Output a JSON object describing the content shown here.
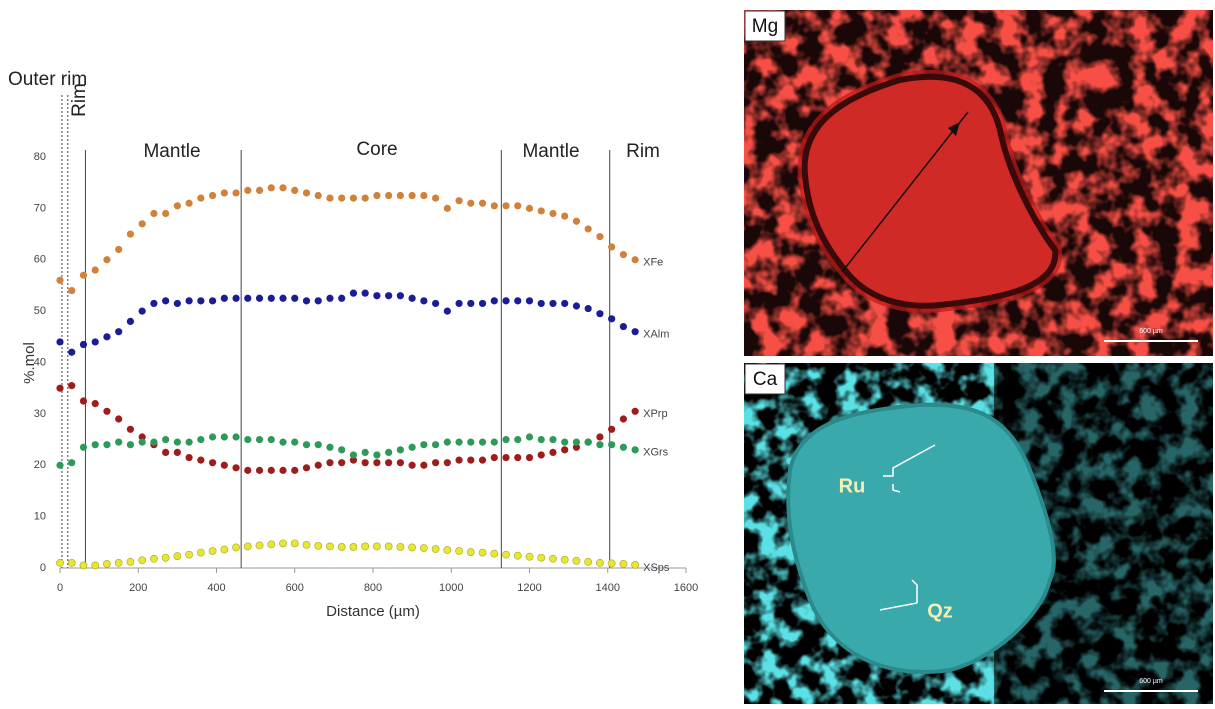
{
  "chart_data": {
    "type": "scatter",
    "x_label": "Distance (µm)",
    "y_label": "%.mol",
    "xlim": [
      0,
      1600
    ],
    "xticks": [
      0,
      200,
      400,
      600,
      800,
      1000,
      1200,
      1400,
      1600
    ],
    "ylim": [
      0,
      80
    ],
    "yticks": [
      0,
      10,
      20,
      30,
      40,
      50,
      60,
      70,
      80
    ],
    "x": [
      0,
      30,
      60,
      90,
      120,
      150,
      180,
      210,
      240,
      270,
      300,
      330,
      360,
      390,
      420,
      450,
      480,
      510,
      540,
      570,
      600,
      630,
      660,
      690,
      720,
      750,
      780,
      810,
      840,
      870,
      900,
      930,
      960,
      990,
      1020,
      1050,
      1080,
      1110,
      1140,
      1170,
      1200,
      1230,
      1260,
      1290,
      1320,
      1350,
      1380,
      1410,
      1440,
      1470
    ],
    "series": [
      {
        "name": "XFe",
        "color": "#d2813b",
        "values": [
          56,
          54,
          57,
          58,
          60,
          62,
          65,
          67,
          69,
          69,
          70.5,
          71,
          72,
          72.5,
          73,
          73,
          73.5,
          73.5,
          74,
          74,
          73.5,
          73,
          72.5,
          72,
          72,
          72,
          72,
          72.5,
          72.5,
          72.5,
          72.5,
          72.5,
          72,
          70,
          71.5,
          71,
          71,
          70.5,
          70.5,
          70.5,
          70,
          69.5,
          69,
          68.5,
          67.5,
          66,
          64.5,
          62.5,
          61,
          60
        ]
      },
      {
        "name": "XAlm",
        "color": "#1c1c96",
        "values": [
          44,
          42,
          43.5,
          44,
          45,
          46,
          48,
          50,
          51.5,
          52,
          51.5,
          52,
          52,
          52,
          52.5,
          52.5,
          52.5,
          52.5,
          52.5,
          52.5,
          52.5,
          52,
          52,
          52.5,
          52.5,
          53.5,
          53.5,
          53,
          53,
          53,
          52.5,
          52,
          51.5,
          50,
          51.5,
          51.5,
          51.5,
          52,
          52,
          52,
          52,
          51.5,
          51.5,
          51.5,
          51,
          50.5,
          49.5,
          48.5,
          47,
          46
        ]
      },
      {
        "name": "XPrp",
        "color": "#a01c1c",
        "values": [
          35,
          35.5,
          32.5,
          32,
          30.5,
          29,
          27,
          25.5,
          24,
          22.5,
          22.5,
          21.5,
          21,
          20.5,
          20,
          19.5,
          19,
          19,
          19,
          19,
          19,
          19.5,
          20,
          20.5,
          20.5,
          21,
          20.5,
          20.5,
          20.5,
          20.5,
          20,
          20,
          20.5,
          20.5,
          21,
          21,
          21,
          21.5,
          21.5,
          21.5,
          21.5,
          22,
          22.5,
          23,
          23.5,
          24.5,
          25.5,
          27,
          29,
          30.5
        ]
      },
      {
        "name": "XGrs",
        "color": "#2e9a5a",
        "values": [
          20,
          20.5,
          23.5,
          24,
          24,
          24.5,
          24,
          24.5,
          24.5,
          25,
          24.5,
          24.5,
          25,
          25.5,
          25.5,
          25.5,
          25,
          25,
          25,
          24.5,
          24.5,
          24,
          24,
          23.5,
          23,
          22,
          22.5,
          22,
          22.5,
          23,
          23.5,
          24,
          24,
          24.5,
          24.5,
          24.5,
          24.5,
          24.5,
          25,
          25,
          25.5,
          25,
          25,
          24.5,
          24.5,
          24.5,
          24,
          24,
          23.5,
          23
        ]
      },
      {
        "name": "XSps",
        "color": "#e6e636",
        "values": [
          1,
          1,
          0.5,
          0.5,
          0.8,
          1,
          1.2,
          1.5,
          1.8,
          2,
          2.3,
          2.6,
          3,
          3.3,
          3.6,
          4,
          4.2,
          4.4,
          4.6,
          4.8,
          4.8,
          4.5,
          4.3,
          4.2,
          4.1,
          4.1,
          4.2,
          4.2,
          4.2,
          4.1,
          4,
          3.9,
          3.7,
          3.5,
          3.3,
          3.1,
          3,
          2.8,
          2.6,
          2.4,
          2.2,
          2,
          1.8,
          1.6,
          1.4,
          1.2,
          1,
          0.9,
          0.8,
          0.6
        ]
      }
    ],
    "boundaries": [
      {
        "x": 5,
        "dotted": true
      },
      {
        "x": 20,
        "dotted": true
      },
      {
        "x": 65,
        "dotted": false
      },
      {
        "x": 463,
        "dotted": false
      },
      {
        "x": 1128,
        "dotted": false
      },
      {
        "x": 1405,
        "dotted": false
      }
    ],
    "zones": [
      "Outer rim",
      "Rim",
      "Mantle",
      "Core",
      "Mantle",
      "Rim"
    ]
  },
  "panels": [
    {
      "element": "Mg",
      "scale_bar": "600 µm"
    },
    {
      "element": "Ca",
      "scale_bar": "600 µm",
      "annotations": [
        "Ru",
        "Qz"
      ]
    }
  ]
}
